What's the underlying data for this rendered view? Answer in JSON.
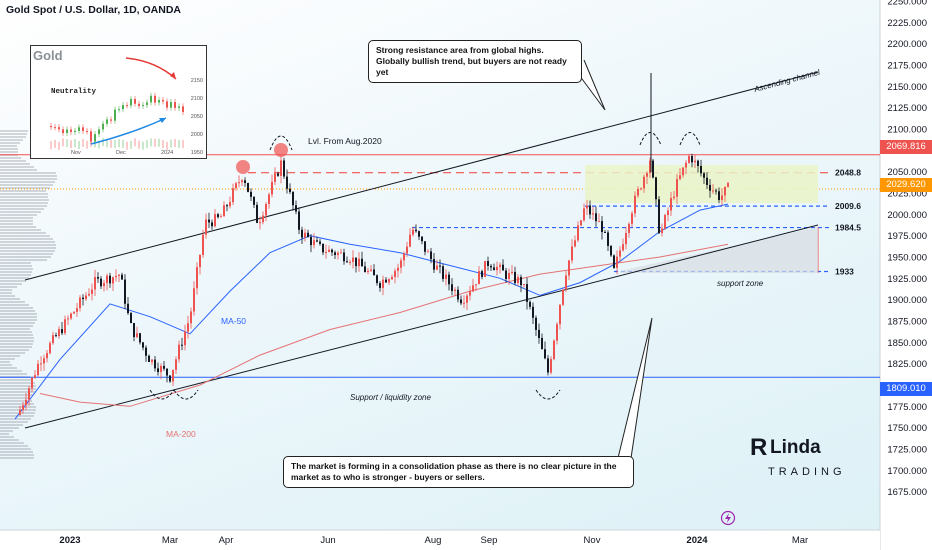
{
  "header": {
    "title": "Gold Spot / U.S. Dollar, 1D, OANDA"
  },
  "inset": {
    "title": "Gold",
    "label": "Neutrality",
    "y_ticks": [
      "2150",
      "2100",
      "2050",
      "2000",
      "1950"
    ],
    "x_ticks": [
      "Nov",
      "Dec",
      "2024"
    ]
  },
  "notes": {
    "top": "Strong resistance area from global highs.\nGlobally bullish trend, but buyers are not ready yet",
    "bottom": "The market is forming in a consolidation phase as there is no clear picture in the market as to who is stronger - buyers or sellers."
  },
  "annotations": {
    "lvl_from_aug": "Lvl. From Aug.2020",
    "ascending_channel": "Ascending channel",
    "support_zone": "support zone",
    "liquidity_zone": "Support / liquidity zone",
    "ma50": "MA-50",
    "ma200": "MA-200",
    "logo_top": "Linda",
    "logo_bottom": "TRADING"
  },
  "price_tags": {
    "high": "2069.816",
    "current": "2029.620",
    "support": "1809.010"
  },
  "colors": {
    "up": "#ef5350",
    "down": "#131722",
    "ma50": "#2962ff",
    "ma200": "#e57373",
    "support_line": "#2962ff",
    "resistance": "#ef5350"
  },
  "chart_data": {
    "type": "line",
    "ylim": [
      1650,
      2250
    ],
    "x_ticks": [
      "2023",
      "Mar",
      "Apr",
      "Jun",
      "Aug",
      "Sep",
      "Nov",
      "2024",
      "Mar"
    ],
    "y_ticks": [
      "2250.000",
      "2225.000",
      "2200.000",
      "2175.000",
      "2150.000",
      "2125.000",
      "2100.000",
      "2075.000",
      "2050.000",
      "2025.000",
      "2000.000",
      "1975.000",
      "1950.000",
      "1925.000",
      "1900.000",
      "1875.000",
      "1850.000",
      "1825.000",
      "1800.000",
      "1775.000",
      "1750.000",
      "1725.000",
      "1700.000",
      "1675.000"
    ],
    "levels": [
      {
        "label": "2048.8",
        "value": 2048.8
      },
      {
        "label": "2009.6",
        "value": 2009.6
      },
      {
        "label": "1984.5",
        "value": 1984.5
      },
      {
        "label": "1933",
        "value": 1933
      }
    ],
    "price_series": {
      "name": "Gold Spot",
      "x": [
        "Dec 2022",
        "Jan 2023",
        "Feb 2023",
        "Mar 2023",
        "Apr 2023",
        "May 2023",
        "Jun 2023",
        "Jul 2023",
        "Aug 2023",
        "Sep 2023",
        "Oct 2023",
        "Nov 2023",
        "Dec 2023",
        "Jan 2024"
      ],
      "values": [
        1765,
        1930,
        1870,
        1810,
        1990,
        2060,
        1920,
        1960,
        1905,
        1880,
        1810,
        1985,
        2060,
        2030
      ]
    }
  }
}
